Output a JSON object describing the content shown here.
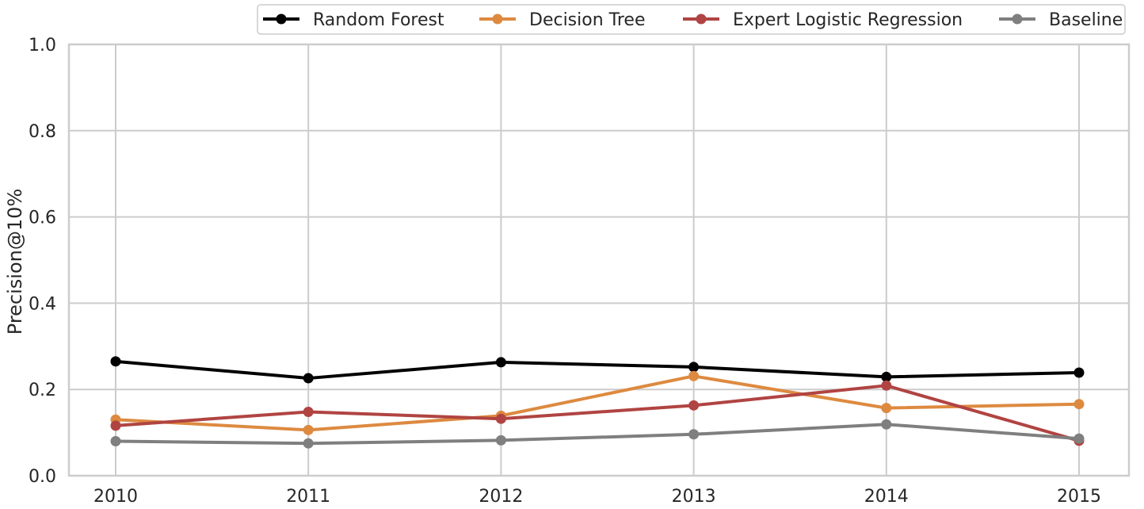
{
  "chart_data": {
    "type": "line",
    "title": "",
    "xlabel": "",
    "ylabel": "Precision@10%",
    "x": [
      "2010",
      "2011",
      "2012",
      "2013",
      "2014",
      "2015"
    ],
    "ylim": [
      0.0,
      1.0
    ],
    "yticks": [
      "0.0",
      "0.2",
      "0.4",
      "0.6",
      "0.8",
      "1.0"
    ],
    "grid": true,
    "legend_position": "top-right",
    "series": [
      {
        "name": "Random Forest",
        "color": "#000000",
        "values": [
          0.265,
          0.226,
          0.263,
          0.252,
          0.229,
          0.239
        ]
      },
      {
        "name": "Decision Tree",
        "color": "#dd8a40",
        "values": [
          0.13,
          0.106,
          0.139,
          0.231,
          0.157,
          0.166
        ]
      },
      {
        "name": "Expert Logistic Regression",
        "color": "#b04442",
        "values": [
          0.116,
          0.148,
          0.132,
          0.163,
          0.209,
          0.081
        ]
      },
      {
        "name": "Baseline",
        "color": "#7f7f7f",
        "values": [
          0.08,
          0.075,
          0.082,
          0.096,
          0.119,
          0.086
        ]
      }
    ]
  }
}
